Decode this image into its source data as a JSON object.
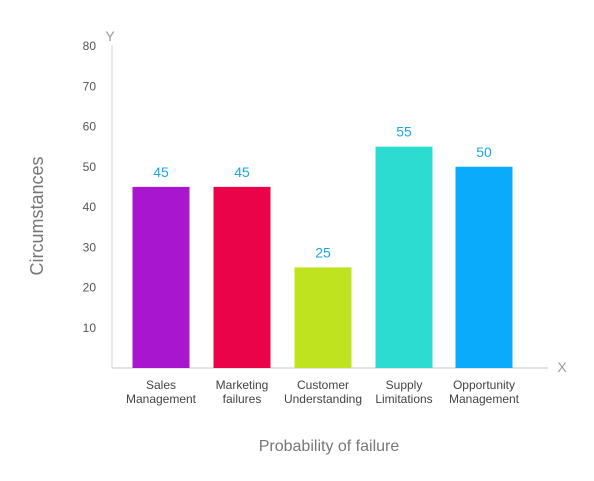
{
  "chart_data": {
    "type": "bar",
    "categories": [
      [
        "Sales",
        "Management"
      ],
      [
        "Marketing",
        "failures"
      ],
      [
        "Customer",
        "Understanding"
      ],
      [
        "Supply",
        "Limitations"
      ],
      [
        "Opportunity",
        "Management"
      ]
    ],
    "values": [
      45,
      45,
      25,
      55,
      50
    ],
    "bar_colors": [
      "#a816cf",
      "#ea0349",
      "#c0e31f",
      "#2cdcd0",
      "#0aabfb"
    ],
    "value_label_color": "#1aa7e8",
    "xlabel": "Probability of failure",
    "ylabel": "Circumstances",
    "x_axis_letter": "X",
    "y_axis_letter": "Y",
    "yticks": [
      10,
      20,
      30,
      40,
      50,
      60,
      70,
      80
    ],
    "ylim": [
      0,
      80
    ],
    "grid": false,
    "legend": "none"
  }
}
